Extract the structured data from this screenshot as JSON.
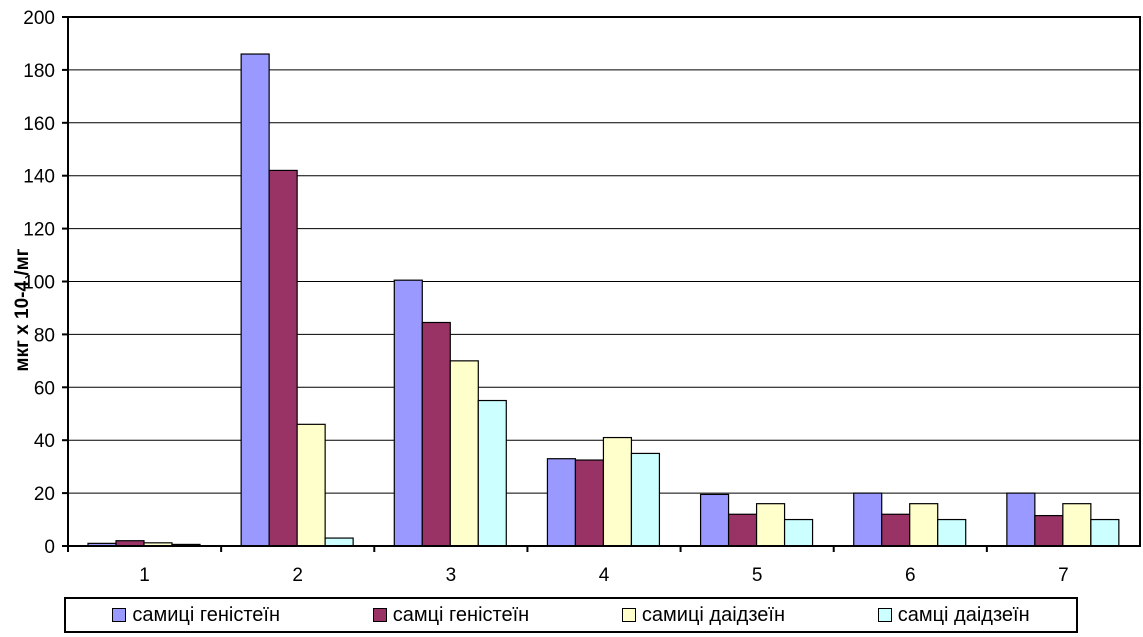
{
  "chart_data": {
    "type": "bar",
    "categories": [
      "1",
      "2",
      "3",
      "4",
      "5",
      "6",
      "7"
    ],
    "series": [
      {
        "name": "самиці геністеїн",
        "color": "#9999FF",
        "values": [
          1,
          186,
          100.5,
          33,
          19.5,
          20,
          20
        ]
      },
      {
        "name": "самці геністеїн",
        "color": "#993366",
        "values": [
          2,
          142,
          84.5,
          32.5,
          12,
          12,
          11.5
        ]
      },
      {
        "name": "самиці даідзеїн",
        "color": "#FFFFCC",
        "values": [
          1.2,
          46,
          70,
          41,
          16,
          16,
          16
        ]
      },
      {
        "name": "самці даідзеїн",
        "color": "#CCFFFF",
        "values": [
          0.6,
          3,
          55,
          35,
          10,
          10,
          10
        ]
      }
    ],
    "ylabel": "мкг х 10-4 /мг",
    "ylim": [
      0,
      200
    ],
    "yticks": [
      "0",
      "20",
      "40",
      "60",
      "80",
      "100",
      "120",
      "140",
      "160",
      "180",
      "200"
    ],
    "grid": true,
    "legend_position": "bottom"
  }
}
